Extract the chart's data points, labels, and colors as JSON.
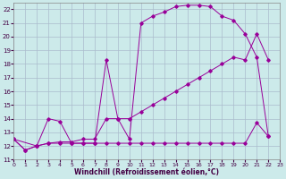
{
  "xlabel": "Windchill (Refroidissement éolien,°C)",
  "bg_color": "#cceaea",
  "grid_color": "#aabbcc",
  "line_color": "#990099",
  "xlim": [
    0,
    23
  ],
  "ylim": [
    11,
    22.5
  ],
  "xticks": [
    0,
    1,
    2,
    3,
    4,
    5,
    6,
    7,
    8,
    9,
    10,
    11,
    12,
    13,
    14,
    15,
    16,
    17,
    18,
    19,
    20,
    21,
    22,
    23
  ],
  "yticks": [
    11,
    12,
    13,
    14,
    15,
    16,
    17,
    18,
    19,
    20,
    21,
    22
  ],
  "curve_bell_x": [
    0,
    1,
    2,
    3,
    4,
    5,
    6,
    7,
    8,
    9,
    10,
    11,
    12,
    13,
    14,
    15,
    16,
    17,
    18,
    19,
    20,
    21,
    22
  ],
  "curve_bell_y": [
    12.5,
    11.7,
    12.0,
    14.0,
    13.8,
    12.2,
    12.2,
    12.2,
    18.3,
    14.0,
    12.5,
    21.0,
    21.5,
    21.8,
    22.2,
    22.3,
    22.3,
    22.2,
    21.5,
    21.2,
    20.2,
    18.5,
    12.7
  ],
  "curve_diag_x": [
    0,
    2,
    3,
    4,
    5,
    6,
    7,
    8,
    9,
    10,
    11,
    12,
    13,
    14,
    15,
    16,
    17,
    18,
    19,
    20,
    21,
    22
  ],
  "curve_diag_y": [
    12.5,
    12.0,
    12.2,
    12.3,
    12.3,
    12.5,
    12.5,
    14.0,
    14.0,
    14.0,
    14.5,
    15.0,
    15.5,
    16.0,
    16.5,
    17.0,
    17.5,
    18.0,
    18.5,
    18.3,
    20.2,
    18.3
  ],
  "curve_flat_x": [
    0,
    1,
    2,
    3,
    4,
    5,
    6,
    7,
    8,
    9,
    10,
    11,
    12,
    13,
    14,
    15,
    16,
    17,
    18,
    19,
    20,
    21,
    22
  ],
  "curve_flat_y": [
    12.5,
    11.7,
    12.0,
    12.2,
    12.2,
    12.2,
    12.2,
    12.2,
    12.2,
    12.2,
    12.2,
    12.2,
    12.2,
    12.2,
    12.2,
    12.2,
    12.2,
    12.2,
    12.2,
    12.2,
    12.2,
    13.7,
    12.7
  ]
}
